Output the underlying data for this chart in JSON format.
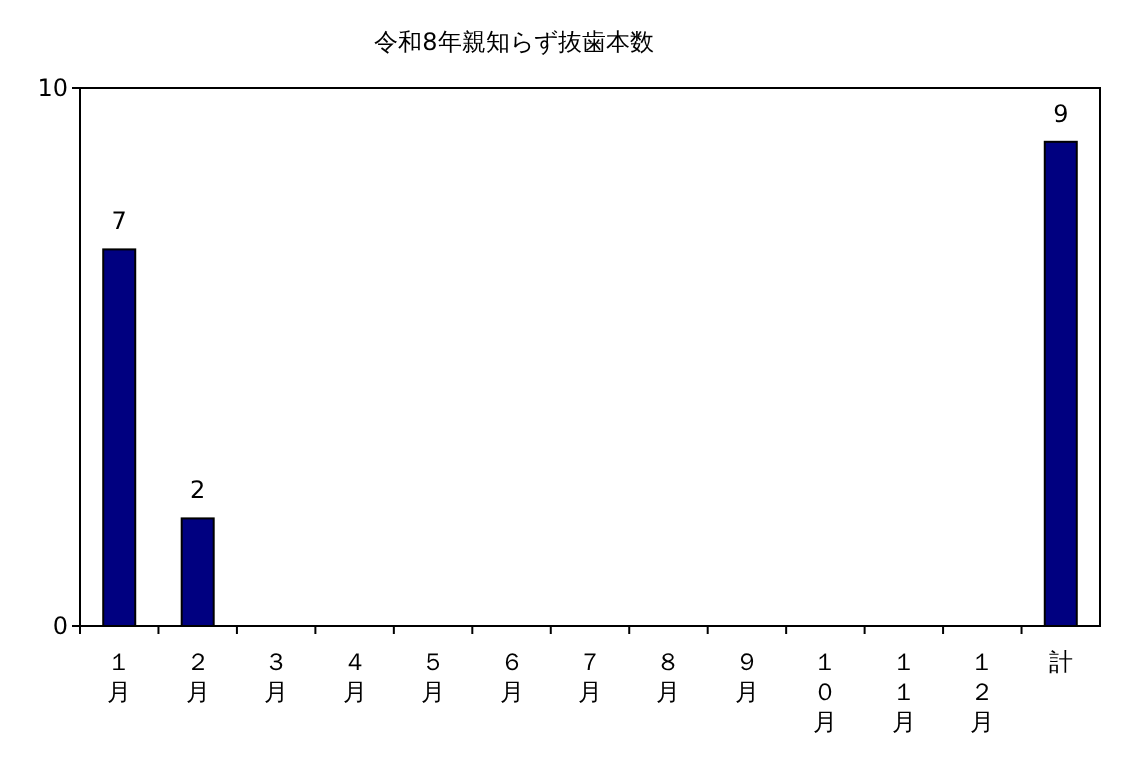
{
  "chart_data": {
    "type": "bar",
    "title": "令和8年親知らず抜歯本数",
    "categories": [
      "１月",
      "２月",
      "３月",
      "４月",
      "５月",
      "６月",
      "７月",
      "８月",
      "９月",
      "１０月",
      "１１月",
      "１２月",
      "計"
    ],
    "values": [
      7,
      2,
      0,
      0,
      0,
      0,
      0,
      0,
      0,
      0,
      0,
      0,
      9
    ],
    "value_labels": [
      "7",
      "2",
      null,
      null,
      null,
      null,
      null,
      null,
      null,
      null,
      null,
      null,
      "9"
    ],
    "color": "#000080",
    "ylim": [
      0,
      10
    ],
    "yticks": [
      0,
      10
    ]
  }
}
